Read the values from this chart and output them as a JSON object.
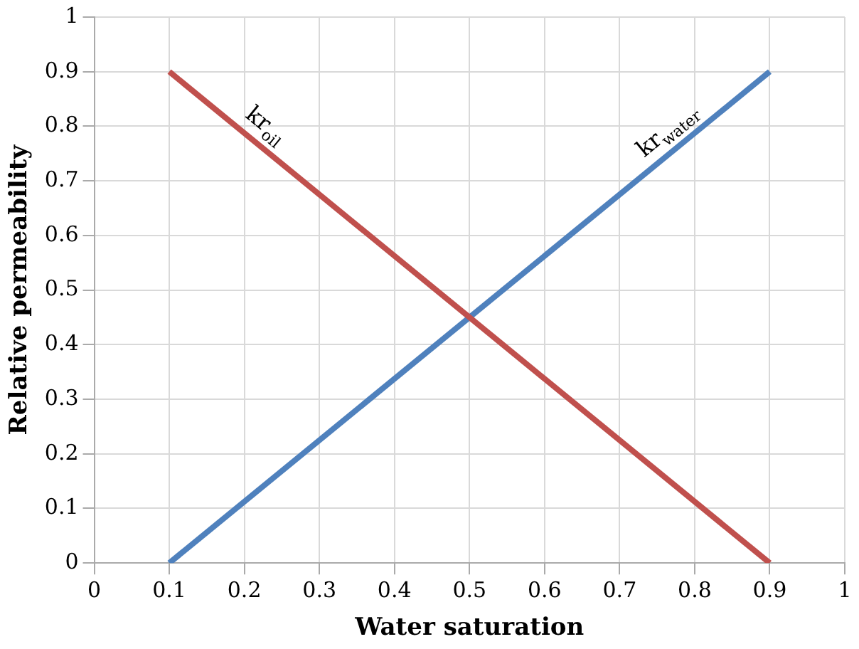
{
  "chart_data": {
    "type": "line",
    "xlabel": "Water saturation",
    "ylabel": "Relative permeability",
    "xlim": [
      0,
      1
    ],
    "ylim": [
      0,
      1
    ],
    "xticks": [
      0,
      0.1,
      0.2,
      0.3,
      0.4,
      0.5,
      0.6,
      0.7,
      0.8,
      0.9,
      1
    ],
    "yticks": [
      0,
      0.1,
      0.2,
      0.3,
      0.4,
      0.5,
      0.6,
      0.7,
      0.8,
      0.9,
      1
    ],
    "grid": true,
    "marker": "none",
    "line_style": "solid",
    "x": [
      0.1,
      0.9
    ],
    "series": [
      {
        "name": "kr$_{oil}$",
        "color": "#c0504d",
        "values": [
          0.9,
          0
        ]
      },
      {
        "name": "kr$_{water}$",
        "color": "#4f81bd",
        "values": [
          0,
          0.9
        ]
      }
    ]
  }
}
